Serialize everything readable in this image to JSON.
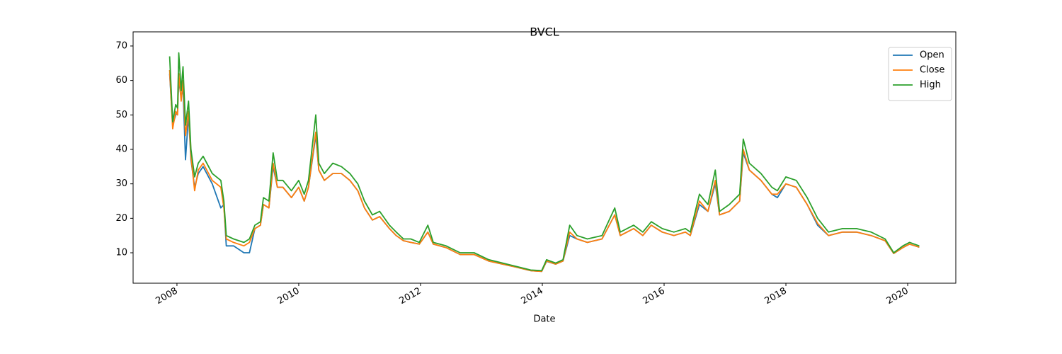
{
  "chart_data": {
    "type": "line",
    "title": "BVCL",
    "x_label": "Date",
    "x": [
      2007.88,
      2007.93,
      2007.98,
      2008.01,
      2008.03,
      2008.07,
      2008.1,
      2008.14,
      2008.19,
      2008.23,
      2008.29,
      2008.35,
      2008.43,
      2008.58,
      2008.72,
      2008.77,
      2008.81,
      2008.93,
      2009.1,
      2009.19,
      2009.28,
      2009.37,
      2009.42,
      2009.51,
      2009.58,
      2009.65,
      2009.74,
      2009.88,
      2010.0,
      2010.09,
      2010.16,
      2010.28,
      2010.33,
      2010.42,
      2010.56,
      2010.7,
      2010.84,
      2010.97,
      2011.08,
      2011.21,
      2011.33,
      2011.49,
      2011.6,
      2011.72,
      2011.84,
      2011.98,
      2012.12,
      2012.21,
      2012.42,
      2012.65,
      2012.88,
      2013.12,
      2013.35,
      2013.58,
      2013.81,
      2013.99,
      2014.07,
      2014.22,
      2014.34,
      2014.45,
      2014.57,
      2014.74,
      2014.98,
      2015.19,
      2015.28,
      2015.5,
      2015.65,
      2015.79,
      2015.97,
      2016.16,
      2016.35,
      2016.43,
      2016.58,
      2016.72,
      2016.84,
      2016.91,
      2017.07,
      2017.24,
      2017.3,
      2017.4,
      2017.59,
      2017.77,
      2017.86,
      2018.0,
      2018.17,
      2018.35,
      2018.52,
      2018.7,
      2018.93,
      2019.16,
      2019.4,
      2019.63,
      2019.77,
      2019.92,
      2020.03,
      2020.19
    ],
    "series": [
      {
        "name": "Open",
        "color": "#1f77b4",
        "values": [
          62,
          47,
          50,
          51,
          60,
          55,
          58,
          37,
          50,
          37,
          29,
          33,
          35,
          30,
          23,
          24,
          12,
          12,
          10,
          10,
          17,
          18,
          24,
          23,
          35,
          29,
          29,
          26,
          29,
          25,
          29,
          44,
          34,
          31,
          33,
          33,
          31,
          28,
          23,
          19.5,
          20.5,
          17,
          15,
          13.5,
          13,
          12.5,
          16,
          12.5,
          11.5,
          9.5,
          9.5,
          7.6,
          6.7,
          5.8,
          4.8,
          4.6,
          7.5,
          6.7,
          7.6,
          15,
          14,
          13,
          14,
          21,
          15,
          17,
          15,
          18,
          16,
          15,
          16,
          15,
          24,
          22,
          30,
          21,
          22,
          25,
          39,
          34,
          31,
          27,
          26,
          30,
          29,
          24,
          18,
          15,
          16,
          16,
          15,
          13.5,
          9.8,
          11.5,
          12.5,
          11.6
        ]
      },
      {
        "name": "Close",
        "color": "#ff7f0e",
        "values": [
          63,
          46,
          51,
          50,
          62,
          54,
          60,
          44,
          51,
          38,
          28,
          34,
          36,
          31,
          29,
          23,
          14,
          13,
          12,
          13,
          17,
          18,
          24,
          23,
          36,
          29,
          29,
          26,
          29,
          25,
          29,
          45,
          34,
          31,
          33,
          33,
          31,
          28,
          23,
          19.5,
          20.5,
          17,
          15,
          13.5,
          13,
          12.5,
          16,
          12.5,
          11.5,
          9.5,
          9.5,
          7.6,
          6.7,
          5.8,
          4.8,
          4.6,
          7.6,
          6.7,
          7.6,
          16,
          14,
          13,
          14,
          21,
          15,
          17,
          15,
          18,
          16,
          15,
          16,
          15,
          25,
          22,
          31,
          21,
          22,
          25,
          40,
          34,
          31,
          27,
          27,
          30,
          29,
          24,
          18.5,
          15,
          16,
          16,
          15,
          13.5,
          9.8,
          11.5,
          12.5,
          11.6
        ]
      },
      {
        "name": "High",
        "color": "#2ca02c",
        "values": [
          67,
          48,
          53,
          52,
          68,
          57,
          64,
          47,
          54,
          40,
          32,
          36,
          38,
          33,
          31,
          25,
          15,
          14,
          13,
          14,
          18,
          19,
          26,
          25,
          39,
          31,
          31,
          28,
          31,
          27,
          31,
          50,
          36,
          33,
          36,
          35,
          33,
          30,
          25,
          21,
          22,
          18,
          16,
          14,
          14,
          13,
          18,
          13,
          12,
          10,
          10,
          8,
          7,
          6,
          5,
          4.8,
          8,
          7,
          8,
          18,
          15,
          14,
          15,
          23,
          16,
          18,
          16,
          19,
          17,
          16,
          17,
          16,
          27,
          24,
          34,
          22,
          24,
          27,
          43,
          36,
          33,
          29,
          28,
          32,
          31,
          26,
          20,
          16,
          17,
          17,
          16,
          14,
          10,
          12,
          13,
          12
        ]
      }
    ],
    "xlim": [
      2007.28,
      2020.79
    ],
    "xticks": [
      2008,
      2010,
      2012,
      2014,
      2016,
      2018,
      2020
    ],
    "ylim": [
      1.17,
      74.1
    ],
    "yticks": [
      10,
      20,
      30,
      40,
      50,
      60,
      70
    ],
    "legend": "upper right",
    "grid": false
  }
}
